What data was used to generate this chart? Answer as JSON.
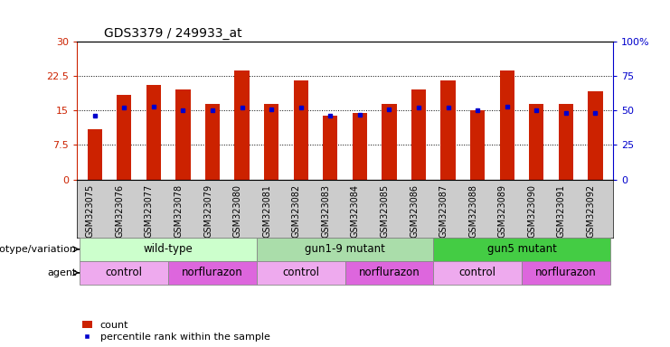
{
  "title": "GDS3379 / 249933_at",
  "samples": [
    "GSM323075",
    "GSM323076",
    "GSM323077",
    "GSM323078",
    "GSM323079",
    "GSM323080",
    "GSM323081",
    "GSM323082",
    "GSM323083",
    "GSM323084",
    "GSM323085",
    "GSM323086",
    "GSM323087",
    "GSM323088",
    "GSM323089",
    "GSM323090",
    "GSM323091",
    "GSM323092"
  ],
  "counts": [
    11.0,
    18.5,
    20.5,
    19.5,
    16.5,
    23.8,
    16.5,
    21.5,
    13.8,
    14.5,
    16.5,
    19.5,
    21.5,
    15.0,
    23.8,
    16.5,
    16.5,
    19.2
  ],
  "percentiles": [
    46,
    52,
    53,
    50,
    50,
    52,
    51,
    52,
    46,
    47,
    51,
    52,
    52,
    50,
    53,
    50,
    48,
    48
  ],
  "bar_color": "#cc2200",
  "dot_color": "#0000cc",
  "ylim_left": [
    0,
    30
  ],
  "ylim_right": [
    0,
    100
  ],
  "yticks_left": [
    0,
    7.5,
    15,
    22.5,
    30
  ],
  "ytick_labels_left": [
    "0",
    "7.5",
    "15",
    "22.5",
    "30"
  ],
  "ytick_labels_right": [
    "0",
    "25",
    "50",
    "75",
    "100%"
  ],
  "genotype_groups": [
    {
      "label": "wild-type",
      "start": 0,
      "end": 6,
      "color": "#ccffcc"
    },
    {
      "label": "gun1-9 mutant",
      "start": 6,
      "end": 12,
      "color": "#aaddaa"
    },
    {
      "label": "gun5 mutant",
      "start": 12,
      "end": 18,
      "color": "#44cc44"
    }
  ],
  "agent_groups": [
    {
      "label": "control",
      "start": 0,
      "end": 3,
      "color": "#eeaaee"
    },
    {
      "label": "norflurazon",
      "start": 3,
      "end": 6,
      "color": "#dd66dd"
    },
    {
      "label": "control",
      "start": 6,
      "end": 9,
      "color": "#eeaaee"
    },
    {
      "label": "norflurazon",
      "start": 9,
      "end": 12,
      "color": "#dd66dd"
    },
    {
      "label": "control",
      "start": 12,
      "end": 15,
      "color": "#eeaaee"
    },
    {
      "label": "norflurazon",
      "start": 15,
      "end": 18,
      "color": "#dd66dd"
    }
  ],
  "genotype_label": "genotype/variation",
  "agent_label": "agent",
  "legend_count": "count",
  "legend_percentile": "percentile rank within the sample",
  "bar_width": 0.5,
  "chart_bg": "#ffffff",
  "xlabels_bg": "#cccccc"
}
